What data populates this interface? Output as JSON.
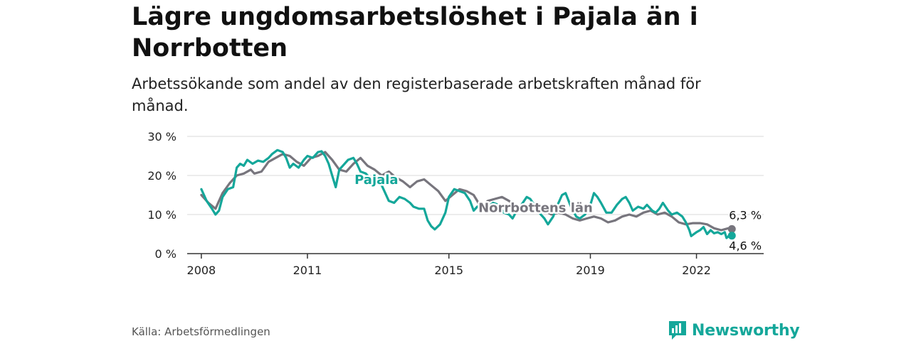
{
  "title": "Lägre ungdomsarbetslöshet i Pajala än i Norrbotten",
  "subtitle": "Arbetssökande som andel av den registerbaserade arbetskraften månad för månad.",
  "source": "Källa: Arbetsförmedlingen",
  "brand": "Newsworthy",
  "colors": {
    "pajala": "#14a79a",
    "norrbotten": "#77757d",
    "grid": "#d9d9d9",
    "axis": "#333333",
    "brand": "#14a79a"
  },
  "chart_data": {
    "type": "line",
    "x_unit": "year",
    "xlim": [
      2007.6,
      2023.9
    ],
    "ylim": [
      0,
      30
    ],
    "x_ticks": [
      {
        "value": 2008,
        "label": "2008"
      },
      {
        "value": 2011,
        "label": "2011"
      },
      {
        "value": 2015,
        "label": "2015"
      },
      {
        "value": 2019,
        "label": "2019"
      },
      {
        "value": 2022,
        "label": "2022"
      }
    ],
    "y_ticks": [
      {
        "value": 0,
        "label": "0 %"
      },
      {
        "value": 10,
        "label": "10 %"
      },
      {
        "value": 20,
        "label": "20 %"
      },
      {
        "value": 30,
        "label": "30 %"
      }
    ],
    "series": [
      {
        "name": "Norrbottens län",
        "label": "Norrbottens län",
        "end_label": "6,3 %",
        "points": [
          [
            2008.0,
            15.0
          ],
          [
            2008.2,
            13.0
          ],
          [
            2008.4,
            11.5
          ],
          [
            2008.6,
            15.5
          ],
          [
            2008.8,
            18.0
          ],
          [
            2009.0,
            20.0
          ],
          [
            2009.2,
            20.5
          ],
          [
            2009.4,
            21.5
          ],
          [
            2009.5,
            20.5
          ],
          [
            2009.7,
            21.0
          ],
          [
            2009.9,
            23.5
          ],
          [
            2010.1,
            24.5
          ],
          [
            2010.3,
            25.5
          ],
          [
            2010.5,
            25.0
          ],
          [
            2010.7,
            23.5
          ],
          [
            2010.9,
            22.5
          ],
          [
            2011.1,
            24.5
          ],
          [
            2011.3,
            25.0
          ],
          [
            2011.5,
            26.0
          ],
          [
            2011.7,
            24.0
          ],
          [
            2011.9,
            21.5
          ],
          [
            2012.1,
            21.0
          ],
          [
            2012.3,
            23.0
          ],
          [
            2012.5,
            24.5
          ],
          [
            2012.7,
            22.5
          ],
          [
            2012.9,
            21.5
          ],
          [
            2013.1,
            20.0
          ],
          [
            2013.3,
            21.0
          ],
          [
            2013.5,
            19.5
          ],
          [
            2013.7,
            18.5
          ],
          [
            2013.9,
            17.0
          ],
          [
            2014.1,
            18.5
          ],
          [
            2014.3,
            19.0
          ],
          [
            2014.5,
            17.5
          ],
          [
            2014.7,
            16.0
          ],
          [
            2014.9,
            13.5
          ],
          [
            2015.1,
            15.0
          ],
          [
            2015.3,
            16.5
          ],
          [
            2015.5,
            16.0
          ],
          [
            2015.7,
            15.0
          ],
          [
            2015.9,
            12.0
          ],
          [
            2016.1,
            13.5
          ],
          [
            2016.3,
            14.0
          ],
          [
            2016.5,
            14.5
          ],
          [
            2016.7,
            13.5
          ],
          [
            2016.9,
            12.0
          ],
          [
            2017.1,
            11.5
          ],
          [
            2017.3,
            12.5
          ],
          [
            2017.5,
            12.0
          ],
          [
            2017.7,
            11.0
          ],
          [
            2017.9,
            10.0
          ],
          [
            2018.1,
            10.5
          ],
          [
            2018.3,
            10.0
          ],
          [
            2018.5,
            9.0
          ],
          [
            2018.7,
            8.5
          ],
          [
            2018.9,
            9.0
          ],
          [
            2019.1,
            9.5
          ],
          [
            2019.3,
            9.0
          ],
          [
            2019.5,
            8.0
          ],
          [
            2019.7,
            8.5
          ],
          [
            2019.9,
            9.5
          ],
          [
            2020.1,
            10.0
          ],
          [
            2020.3,
            9.5
          ],
          [
            2020.5,
            10.5
          ],
          [
            2020.7,
            11.0
          ],
          [
            2020.9,
            10.0
          ],
          [
            2021.1,
            10.5
          ],
          [
            2021.3,
            9.5
          ],
          [
            2021.5,
            8.0
          ],
          [
            2021.7,
            7.5
          ],
          [
            2021.9,
            7.8
          ],
          [
            2022.1,
            7.8
          ],
          [
            2022.3,
            7.5
          ],
          [
            2022.5,
            6.5
          ],
          [
            2022.7,
            6.0
          ],
          [
            2022.9,
            6.5
          ],
          [
            2023.0,
            6.3
          ]
        ]
      },
      {
        "name": "Pajala",
        "label": "Pajala",
        "end_label": "4,6 %",
        "points": [
          [
            2008.0,
            16.5
          ],
          [
            2008.15,
            13.5
          ],
          [
            2008.3,
            11.5
          ],
          [
            2008.4,
            10.0
          ],
          [
            2008.5,
            11.0
          ],
          [
            2008.6,
            14.5
          ],
          [
            2008.75,
            16.5
          ],
          [
            2008.9,
            17.0
          ],
          [
            2009.0,
            22.0
          ],
          [
            2009.1,
            23.0
          ],
          [
            2009.2,
            22.5
          ],
          [
            2009.3,
            24.0
          ],
          [
            2009.45,
            23.0
          ],
          [
            2009.6,
            23.8
          ],
          [
            2009.75,
            23.5
          ],
          [
            2009.9,
            24.5
          ],
          [
            2010.0,
            25.5
          ],
          [
            2010.15,
            26.5
          ],
          [
            2010.3,
            26.0
          ],
          [
            2010.4,
            24.5
          ],
          [
            2010.5,
            22.0
          ],
          [
            2010.6,
            23.0
          ],
          [
            2010.75,
            22.0
          ],
          [
            2010.9,
            24.0
          ],
          [
            2011.0,
            25.0
          ],
          [
            2011.15,
            24.5
          ],
          [
            2011.3,
            26.0
          ],
          [
            2011.4,
            26.2
          ],
          [
            2011.5,
            25.0
          ],
          [
            2011.6,
            23.0
          ],
          [
            2011.7,
            20.0
          ],
          [
            2011.8,
            17.0
          ],
          [
            2011.9,
            21.5
          ],
          [
            2012.0,
            22.5
          ],
          [
            2012.15,
            24.0
          ],
          [
            2012.3,
            24.5
          ],
          [
            2012.4,
            23.0
          ],
          [
            2012.5,
            21.0
          ],
          [
            2012.65,
            20.5
          ],
          [
            2012.8,
            19.0
          ],
          [
            2012.9,
            18.0
          ],
          [
            2013.0,
            18.0
          ],
          [
            2013.1,
            17.5
          ],
          [
            2013.2,
            15.5
          ],
          [
            2013.3,
            13.5
          ],
          [
            2013.45,
            13.0
          ],
          [
            2013.6,
            14.5
          ],
          [
            2013.75,
            14.0
          ],
          [
            2013.9,
            13.0
          ],
          [
            2014.0,
            12.0
          ],
          [
            2014.15,
            11.5
          ],
          [
            2014.3,
            11.5
          ],
          [
            2014.4,
            8.5
          ],
          [
            2014.5,
            7.0
          ],
          [
            2014.6,
            6.2
          ],
          [
            2014.75,
            7.5
          ],
          [
            2014.9,
            10.5
          ],
          [
            2015.0,
            14.5
          ],
          [
            2015.15,
            16.5
          ],
          [
            2015.3,
            16.0
          ],
          [
            2015.45,
            15.5
          ],
          [
            2015.6,
            13.5
          ],
          [
            2015.7,
            11.0
          ],
          [
            2015.8,
            12.0
          ],
          [
            2015.95,
            12.5
          ],
          [
            2016.1,
            12.0
          ],
          [
            2016.25,
            13.0
          ],
          [
            2016.4,
            12.5
          ],
          [
            2016.55,
            10.5
          ],
          [
            2016.7,
            10.0
          ],
          [
            2016.8,
            9.0
          ],
          [
            2016.95,
            11.5
          ],
          [
            2017.05,
            12.5
          ],
          [
            2017.2,
            14.5
          ],
          [
            2017.3,
            14.0
          ],
          [
            2017.45,
            12.0
          ],
          [
            2017.6,
            10.0
          ],
          [
            2017.7,
            9.0
          ],
          [
            2017.8,
            7.5
          ],
          [
            2017.95,
            9.5
          ],
          [
            2018.05,
            12.0
          ],
          [
            2018.2,
            15.0
          ],
          [
            2018.3,
            15.5
          ],
          [
            2018.45,
            12.0
          ],
          [
            2018.6,
            9.5
          ],
          [
            2018.7,
            9.0
          ],
          [
            2018.85,
            10.0
          ],
          [
            2019.0,
            12.5
          ],
          [
            2019.1,
            15.5
          ],
          [
            2019.2,
            14.5
          ],
          [
            2019.3,
            13.0
          ],
          [
            2019.45,
            10.5
          ],
          [
            2019.6,
            10.5
          ],
          [
            2019.75,
            12.5
          ],
          [
            2019.9,
            14.0
          ],
          [
            2020.0,
            14.5
          ],
          [
            2020.1,
            13.0
          ],
          [
            2020.2,
            11.0
          ],
          [
            2020.35,
            12.0
          ],
          [
            2020.5,
            11.5
          ],
          [
            2020.6,
            12.5
          ],
          [
            2020.75,
            11.0
          ],
          [
            2020.85,
            10.5
          ],
          [
            2020.95,
            11.5
          ],
          [
            2021.05,
            13.0
          ],
          [
            2021.2,
            11.0
          ],
          [
            2021.3,
            10.0
          ],
          [
            2021.45,
            10.5
          ],
          [
            2021.6,
            9.5
          ],
          [
            2021.7,
            8.0
          ],
          [
            2021.8,
            6.0
          ],
          [
            2021.85,
            4.5
          ],
          [
            2022.0,
            5.5
          ],
          [
            2022.1,
            6.0
          ],
          [
            2022.2,
            6.8
          ],
          [
            2022.3,
            5.0
          ],
          [
            2022.4,
            6.0
          ],
          [
            2022.5,
            5.2
          ],
          [
            2022.6,
            5.5
          ],
          [
            2022.7,
            5.0
          ],
          [
            2022.8,
            5.5
          ],
          [
            2022.85,
            4.0
          ],
          [
            2022.95,
            4.8
          ],
          [
            2023.0,
            4.6
          ]
        ]
      }
    ]
  }
}
